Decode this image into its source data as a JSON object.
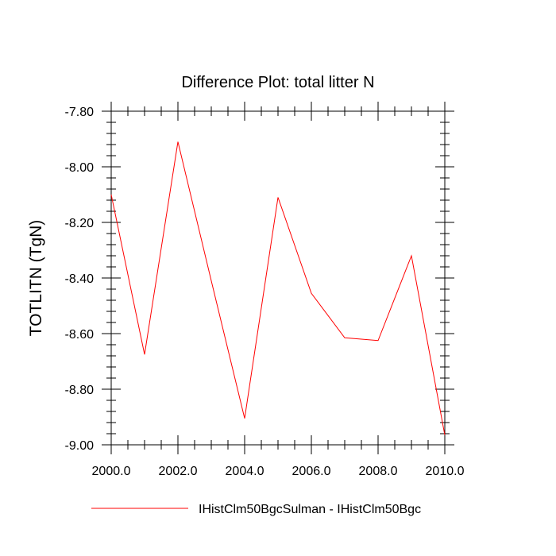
{
  "chart_data": {
    "type": "line",
    "title": "Difference Plot: total litter N",
    "xlabel": "",
    "ylabel": "TOTLITN  (TgN)",
    "xlim": [
      2000,
      2010
    ],
    "ylim": [
      -9.0,
      -7.8
    ],
    "x_ticks": [
      2000,
      2002,
      2004,
      2006,
      2008,
      2010
    ],
    "x_tick_labels": [
      "2000.0",
      "2002.0",
      "2004.0",
      "2006.0",
      "2008.0",
      "2010.0"
    ],
    "y_ticks": [
      -7.8,
      -8.0,
      -8.2,
      -8.4,
      -8.6,
      -8.8,
      -9.0
    ],
    "y_tick_labels": [
      "-7.80",
      "-8.00",
      "-8.20",
      "-8.40",
      "-8.60",
      "-8.80",
      "-9.00"
    ],
    "grid": false,
    "legend_position": "bottom",
    "series": [
      {
        "name": "IHistClm50BgcSulman - IHistClm50Bgc",
        "color": "#ff0000",
        "x": [
          2000,
          2001,
          2002,
          2003,
          2004,
          2005,
          2006,
          2007,
          2008,
          2009,
          2010
        ],
        "y": [
          -8.1,
          -8.675,
          -7.91,
          -8.41,
          -8.905,
          -8.11,
          -8.455,
          -8.615,
          -8.625,
          -8.32,
          -8.965
        ]
      }
    ]
  }
}
